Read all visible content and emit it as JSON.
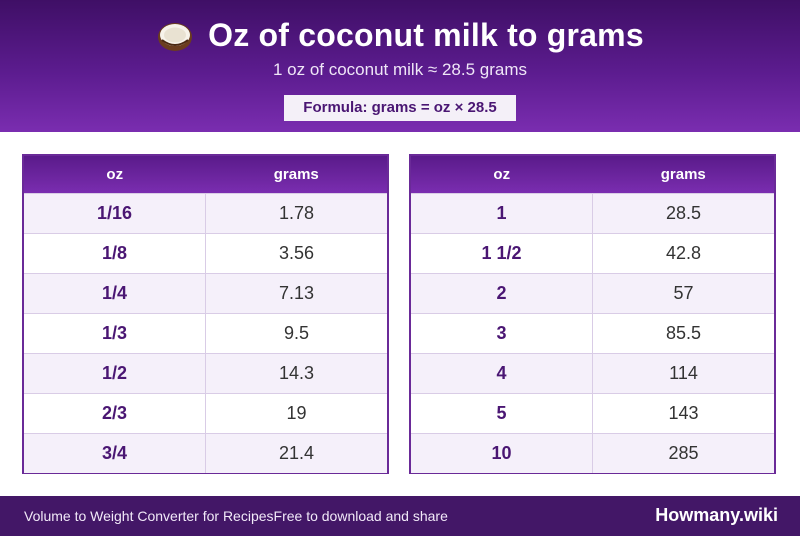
{
  "header": {
    "icon": "coconut-icon",
    "title": "Oz of coconut milk to grams",
    "subtitle": "1 oz of coconut milk ≈ 28.5 grams",
    "formula": "Formula: grams = oz × 28.5"
  },
  "tables": [
    {
      "col_oz": "oz",
      "col_grams": "grams",
      "rows": [
        {
          "oz": "1/16",
          "grams": "1.78"
        },
        {
          "oz": "1/8",
          "grams": "3.56"
        },
        {
          "oz": "1/4",
          "grams": "7.13"
        },
        {
          "oz": "1/3",
          "grams": "9.5"
        },
        {
          "oz": "1/2",
          "grams": "14.3"
        },
        {
          "oz": "2/3",
          "grams": "19"
        },
        {
          "oz": "3/4",
          "grams": "21.4"
        }
      ]
    },
    {
      "col_oz": "oz",
      "col_grams": "grams",
      "rows": [
        {
          "oz": "1",
          "grams": "28.5"
        },
        {
          "oz": "1 1/2",
          "grams": "42.8"
        },
        {
          "oz": "2",
          "grams": "57"
        },
        {
          "oz": "3",
          "grams": "85.5"
        },
        {
          "oz": "4",
          "grams": "114"
        },
        {
          "oz": "5",
          "grams": "143"
        },
        {
          "oz": "10",
          "grams": "285"
        }
      ]
    }
  ],
  "footer": {
    "left_text": "Volume to Weight Converter for RecipesFree to download and share",
    "brand": "Howmany.wiki"
  },
  "colors": {
    "primary": "#5c1c8f",
    "accent": "#4a1673",
    "row_alt": "#f5f0fa"
  }
}
